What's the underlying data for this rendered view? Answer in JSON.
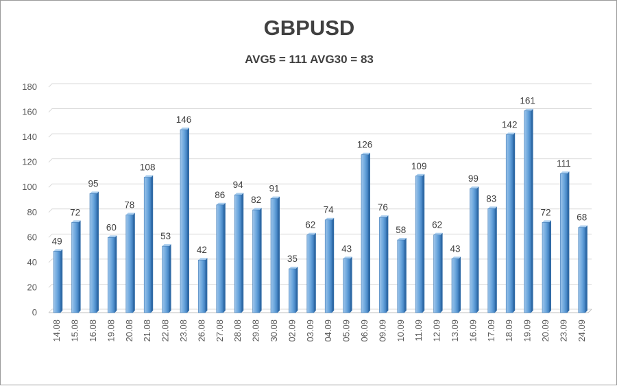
{
  "chart_data": {
    "type": "bar",
    "title": "GBPUSD",
    "subtitle": "AVG5 = 111 AVG30 = 83",
    "categories": [
      "14.08",
      "15.08",
      "16.08",
      "19.08",
      "20.08",
      "21.08",
      "22.08",
      "23.08",
      "26.08",
      "27.08",
      "28.08",
      "29.08",
      "30.08",
      "02.09",
      "03.09",
      "04.09",
      "05.09",
      "06.09",
      "09.09",
      "10.09",
      "11.09",
      "12.09",
      "13.09",
      "16.09",
      "17.09",
      "18.09",
      "19.09",
      "20.09",
      "23.09",
      "24.09"
    ],
    "values": [
      49,
      72,
      95,
      60,
      78,
      108,
      53,
      146,
      42,
      86,
      94,
      82,
      91,
      35,
      62,
      74,
      43,
      126,
      76,
      58,
      109,
      62,
      43,
      99,
      83,
      142,
      161,
      72,
      111,
      68
    ],
    "ylim": [
      0,
      180
    ],
    "yticks": [
      0,
      20,
      40,
      60,
      80,
      100,
      120,
      140,
      160,
      180
    ],
    "grid": true,
    "bar_color": "#5b9bd5",
    "data_labels": true
  }
}
